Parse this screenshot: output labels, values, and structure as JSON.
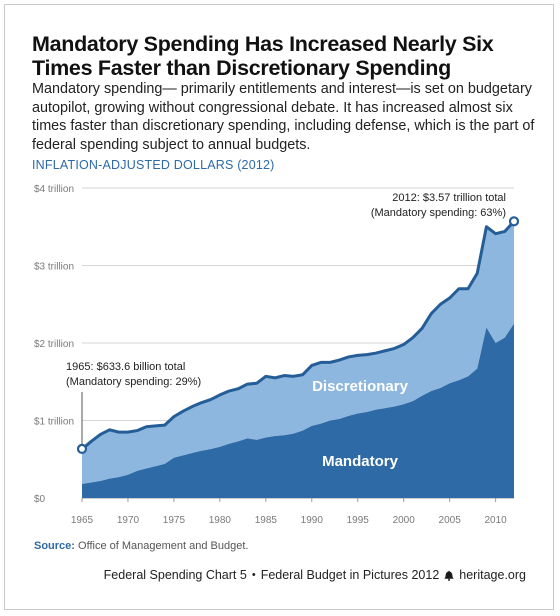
{
  "header": {
    "title": "Mandatory Spending Has Increased Nearly Six Times Faster than Discretionary Spending",
    "subtitle": "Mandatory spending— primarily entitlements and interest—is set on budgetary autopilot, growing without congressional debate. It has increased almost six times faster than discretionary spending, including defense, which is the part of federal spending subject to annual budgets.",
    "units": "INFLATION-ADJUSTED DOLLARS (2012)"
  },
  "colors": {
    "mandatory": "#2e6aa6",
    "discretionary": "#8db7df",
    "total_line": "#255d97",
    "title_blue": "#2e6aa6"
  },
  "chart_data": {
    "type": "area",
    "stacked": true,
    "xlim": [
      1965,
      2012
    ],
    "ylim": [
      0,
      4
    ],
    "y_unit": "trillions of 2012 dollars",
    "x_ticks": [
      1965,
      1970,
      1975,
      1980,
      1985,
      1990,
      1995,
      2000,
      2005,
      2010
    ],
    "y_ticks": [
      {
        "value": 0,
        "label": "$0"
      },
      {
        "value": 1,
        "label": "$1 trillion"
      },
      {
        "value": 2,
        "label": "$2 trillion"
      },
      {
        "value": 3,
        "label": "$3 trillion"
      },
      {
        "value": 4,
        "label": "$4 trillion"
      }
    ],
    "grid": true,
    "series": [
      {
        "name": "Mandatory",
        "x": [
          1965,
          1966,
          1967,
          1968,
          1969,
          1970,
          1971,
          1972,
          1973,
          1974,
          1975,
          1976,
          1977,
          1978,
          1979,
          1980,
          1981,
          1982,
          1983,
          1984,
          1985,
          1986,
          1987,
          1988,
          1989,
          1990,
          1991,
          1992,
          1993,
          1994,
          1995,
          1996,
          1997,
          1998,
          1999,
          2000,
          2001,
          2002,
          2003,
          2004,
          2005,
          2006,
          2007,
          2008,
          2009,
          2010,
          2011,
          2012
        ],
        "values": [
          0.18,
          0.2,
          0.22,
          0.25,
          0.27,
          0.3,
          0.35,
          0.38,
          0.41,
          0.44,
          0.52,
          0.55,
          0.58,
          0.61,
          0.63,
          0.66,
          0.7,
          0.73,
          0.77,
          0.75,
          0.78,
          0.8,
          0.81,
          0.83,
          0.87,
          0.93,
          0.96,
          1.0,
          1.02,
          1.06,
          1.09,
          1.11,
          1.14,
          1.16,
          1.18,
          1.21,
          1.25,
          1.32,
          1.38,
          1.42,
          1.48,
          1.52,
          1.57,
          1.67,
          2.2,
          2.0,
          2.07,
          2.25
        ]
      },
      {
        "name": "Discretionary",
        "x": [
          1965,
          1966,
          1967,
          1968,
          1969,
          1970,
          1971,
          1972,
          1973,
          1974,
          1975,
          1976,
          1977,
          1978,
          1979,
          1980,
          1981,
          1982,
          1983,
          1984,
          1985,
          1986,
          1987,
          1988,
          1989,
          1990,
          1991,
          1992,
          1993,
          1994,
          1995,
          1996,
          1997,
          1998,
          1999,
          2000,
          2001,
          2002,
          2003,
          2004,
          2005,
          2006,
          2007,
          2008,
          2009,
          2010,
          2011,
          2012
        ],
        "values": [
          0.45,
          0.53,
          0.6,
          0.63,
          0.58,
          0.55,
          0.52,
          0.54,
          0.52,
          0.5,
          0.53,
          0.57,
          0.6,
          0.62,
          0.64,
          0.67,
          0.68,
          0.68,
          0.7,
          0.73,
          0.79,
          0.75,
          0.77,
          0.74,
          0.72,
          0.78,
          0.79,
          0.75,
          0.76,
          0.76,
          0.75,
          0.74,
          0.73,
          0.74,
          0.75,
          0.77,
          0.82,
          0.87,
          1.0,
          1.08,
          1.1,
          1.18,
          1.13,
          1.23,
          1.3,
          1.41,
          1.37,
          1.32
        ]
      }
    ],
    "area_labels": [
      "Mandatory",
      "Discretionary"
    ],
    "annotations": [
      {
        "x": 1965,
        "y": 0.6336,
        "lines": [
          "1965: $633.6 billion total",
          "(Mandatory spending: 29%)"
        ]
      },
      {
        "x": 2012,
        "y": 3.57,
        "lines": [
          "2012: $3.57 trillion total",
          "(Mandatory spending: 63%)"
        ]
      }
    ]
  },
  "source": {
    "label": "Source:",
    "text": "Office of Management and Budget."
  },
  "footer": {
    "chart_name": "Federal Spending Chart 5",
    "separator": "•",
    "publication": "Federal Budget in Pictures 2012",
    "site": "heritage.org"
  }
}
